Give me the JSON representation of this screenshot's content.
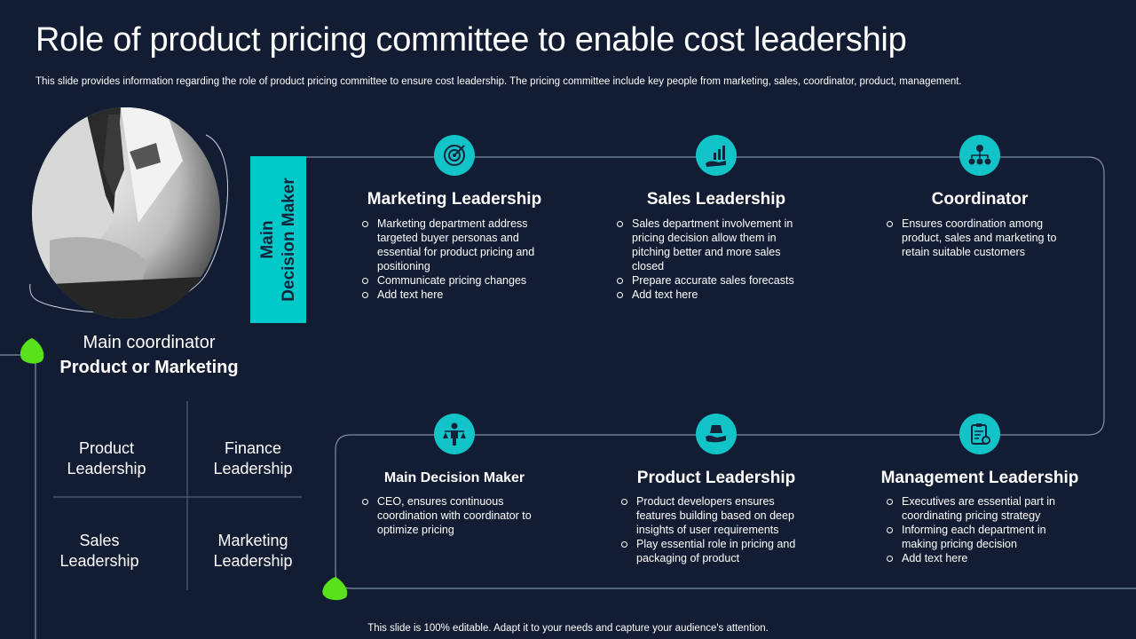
{
  "title": "Role of product pricing committee to enable cost leadership",
  "subtitle": "This slide provides information regarding the role of product pricing committee to ensure cost leadership. The pricing committee include key people from marketing, sales, coordinator, product, management.",
  "footer": "This slide is 100% editable. Adapt it to your needs and capture your audience's attention.",
  "coordinator": {
    "line1": "Main coordinator",
    "line2": "Product or Marketing"
  },
  "grid": [
    {
      "line1": "Product",
      "line2": "Leadership"
    },
    {
      "line1": "Finance",
      "line2": "Leadership"
    },
    {
      "line1": "Sales",
      "line2": "Leadership"
    },
    {
      "line1": "Marketing",
      "line2": "Leadership"
    }
  ],
  "vertical_label": {
    "line1": "Main",
    "line2": "Decision Maker"
  },
  "accent": "#12c3c8",
  "cards": [
    {
      "icon": "target-icon",
      "title": "Marketing Leadership",
      "bullets": [
        "Marketing department address targeted buyer personas and essential for product pricing and positioning",
        "Communicate pricing changes",
        "Add text here"
      ]
    },
    {
      "icon": "growth-hand-icon",
      "title": "Sales Leadership",
      "bullets": [
        "Sales department involvement in pricing decision allow them in pitching better and more sales closed",
        "Prepare accurate sales forecasts",
        "Add text here"
      ]
    },
    {
      "icon": "org-chart-icon",
      "title": "Coordinator",
      "bullets": [
        "Ensures coordination among product, sales and marketing to retain suitable customers"
      ]
    },
    {
      "icon": "balance-person-icon",
      "title": "Main Decision Maker",
      "bullets": [
        "CEO, ensures continuous coordination with coordinator to optimize pricing"
      ]
    },
    {
      "icon": "hand-box-icon",
      "title": "Product Leadership",
      "bullets": [
        "Product developers ensures features building based on deep insights of user requirements",
        "Play essential role in pricing and packaging of product"
      ]
    },
    {
      "icon": "clipboard-gear-icon",
      "title": "Management Leadership",
      "bullets": [
        "Executives are essential part in coordinating pricing strategy",
        "Informing each department in making pricing decision",
        "Add text here"
      ]
    }
  ]
}
